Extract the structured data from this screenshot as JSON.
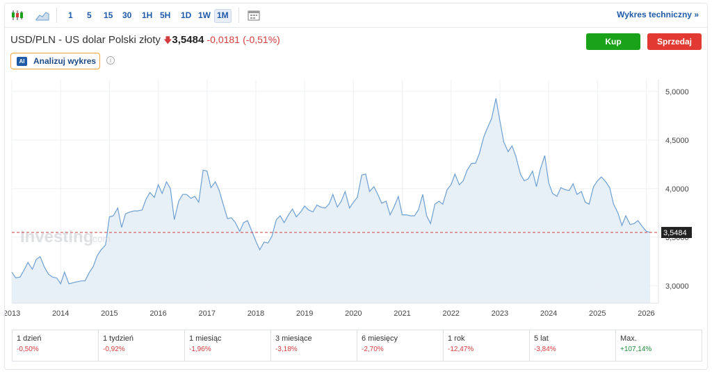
{
  "toolbar": {
    "timeframes": [
      "1",
      "5",
      "15",
      "30",
      "1H",
      "5H",
      "1D",
      "1W",
      "1M"
    ],
    "active_timeframe": "1M",
    "technical_link": "Wykres techniczny",
    "technical_arrow": "»"
  },
  "instrument": {
    "name": "USD/PLN - US dolar Polski złoty",
    "price": "3,5484",
    "change": "-0,0181",
    "change_pct": "(-0,51%)"
  },
  "actions": {
    "buy": "Kup",
    "sell": "Sprzedaj"
  },
  "ai": {
    "badge": "AI",
    "label": "Analizuj wykres",
    "info": "i"
  },
  "watermark": {
    "main": "Investing",
    "suffix": ".com"
  },
  "colors": {
    "line": "#6c9fd3",
    "fill": "#e4edf6",
    "last_line": "#d23c3c",
    "accent": "#1e5aa8",
    "buy": "#1aa21a",
    "sell": "#e23a32"
  },
  "chart_data": {
    "type": "area",
    "x_tick_labels": [
      "2013",
      "2014",
      "2015",
      "2016",
      "2017",
      "2018",
      "2019",
      "2020",
      "2021",
      "2022",
      "2023",
      "2024",
      "2025",
      "2026"
    ],
    "y_tick_labels": [
      "3,0000",
      "3,5000",
      "4,0000",
      "4,5000",
      "5,0000"
    ],
    "y_ticks": [
      3.0,
      3.5,
      4.0,
      4.5,
      5.0
    ],
    "ylim": [
      2.82,
      5.12
    ],
    "xlim": [
      2013.0,
      2026.25
    ],
    "last_value": 3.5484,
    "last_value_label": "3,5484",
    "grid": true,
    "series": [
      {
        "x": [
          2013.0,
          2013.08,
          2013.17,
          2013.25,
          2013.33,
          2013.42,
          2013.5,
          2013.58,
          2013.67,
          2013.75,
          2013.83,
          2013.92,
          2014.0,
          2014.08,
          2014.17,
          2014.25,
          2014.33,
          2014.42,
          2014.5,
          2014.58,
          2014.67,
          2014.75,
          2014.83,
          2014.92,
          2015.0,
          2015.08,
          2015.17,
          2015.25,
          2015.33,
          2015.42,
          2015.5,
          2015.58,
          2015.67,
          2015.75,
          2015.83,
          2015.92,
          2016.0,
          2016.08,
          2016.17,
          2016.25,
          2016.33,
          2016.42,
          2016.5,
          2016.58,
          2016.67,
          2016.75,
          2016.83,
          2016.92,
          2017.0,
          2017.08,
          2017.17,
          2017.25,
          2017.33,
          2017.42,
          2017.5,
          2017.58,
          2017.67,
          2017.75,
          2017.83,
          2017.92,
          2018.0,
          2018.08,
          2018.17,
          2018.25,
          2018.33,
          2018.42,
          2018.5,
          2018.58,
          2018.67,
          2018.75,
          2018.83,
          2018.92,
          2019.0,
          2019.08,
          2019.17,
          2019.25,
          2019.33,
          2019.42,
          2019.5,
          2019.58,
          2019.67,
          2019.75,
          2019.83,
          2019.92,
          2020.0,
          2020.08,
          2020.17,
          2020.25,
          2020.33,
          2020.42,
          2020.5,
          2020.58,
          2020.67,
          2020.75,
          2020.83,
          2020.92,
          2021.0,
          2021.08,
          2021.17,
          2021.25,
          2021.33,
          2021.42,
          2021.5,
          2021.58,
          2021.67,
          2021.75,
          2021.83,
          2021.92,
          2022.0,
          2022.08,
          2022.17,
          2022.25,
          2022.33,
          2022.42,
          2022.5,
          2022.58,
          2022.67,
          2022.75,
          2022.83,
          2022.92,
          2023.0,
          2023.08,
          2023.17,
          2023.25,
          2023.33,
          2023.42,
          2023.5,
          2023.58,
          2023.67,
          2023.75,
          2023.83,
          2023.92,
          2024.0,
          2024.08,
          2024.17,
          2024.25,
          2024.33,
          2024.42,
          2024.5,
          2024.58,
          2024.67,
          2024.75,
          2024.83,
          2024.92,
          2025.0,
          2025.08,
          2025.17,
          2025.25,
          2025.33,
          2025.42,
          2025.5,
          2025.58,
          2025.67,
          2025.75,
          2025.83,
          2025.92,
          2026.0,
          2026.08
        ],
        "y": [
          3.14,
          3.08,
          3.09,
          3.16,
          3.24,
          3.17,
          3.27,
          3.3,
          3.19,
          3.12,
          3.09,
          3.08,
          3.02,
          3.14,
          3.02,
          3.03,
          3.04,
          3.05,
          3.05,
          3.13,
          3.2,
          3.31,
          3.37,
          3.42,
          3.71,
          3.72,
          3.8,
          3.6,
          3.74,
          3.76,
          3.77,
          3.77,
          3.78,
          3.89,
          3.96,
          3.91,
          4.04,
          3.95,
          4.07,
          4.0,
          3.68,
          3.87,
          3.94,
          3.94,
          3.9,
          3.92,
          3.86,
          4.19,
          4.18,
          4.01,
          4.07,
          3.98,
          3.84,
          3.69,
          3.7,
          3.65,
          3.56,
          3.65,
          3.67,
          3.56,
          3.46,
          3.37,
          3.45,
          3.44,
          3.51,
          3.68,
          3.72,
          3.65,
          3.73,
          3.79,
          3.71,
          3.76,
          3.82,
          3.78,
          3.76,
          3.83,
          3.81,
          3.8,
          3.84,
          3.94,
          3.81,
          3.87,
          3.97,
          3.8,
          3.86,
          3.91,
          4.14,
          4.15,
          3.97,
          4.02,
          3.94,
          3.85,
          3.87,
          3.73,
          3.81,
          3.92,
          3.73,
          3.73,
          3.72,
          3.72,
          3.78,
          3.94,
          3.72,
          3.64,
          3.84,
          3.87,
          3.84,
          3.99,
          4.04,
          4.15,
          4.04,
          4.08,
          4.19,
          4.26,
          4.26,
          4.36,
          4.53,
          4.63,
          4.72,
          4.93,
          4.7,
          4.48,
          4.38,
          4.44,
          4.33,
          4.15,
          4.08,
          4.1,
          4.18,
          4.02,
          4.2,
          4.34,
          4.06,
          3.95,
          3.92,
          4.01,
          3.99,
          3.98,
          4.05,
          3.94,
          3.97,
          3.86,
          3.84,
          4.02,
          4.08,
          4.12,
          4.07,
          4.01,
          3.84,
          3.75,
          3.62,
          3.72,
          3.63,
          3.64,
          3.67,
          3.61,
          3.56,
          3.55
        ]
      }
    ]
  },
  "performance": [
    {
      "label": "1 dzień",
      "value": "-0,50%",
      "sign": "neg"
    },
    {
      "label": "1 tydzień",
      "value": "-0,92%",
      "sign": "neg"
    },
    {
      "label": "1 miesiąc",
      "value": "-1,96%",
      "sign": "neg"
    },
    {
      "label": "3 miesiące",
      "value": "-3,18%",
      "sign": "neg"
    },
    {
      "label": "6 miesięcy",
      "value": "-2,70%",
      "sign": "neg"
    },
    {
      "label": "1 rok",
      "value": "-12,47%",
      "sign": "neg"
    },
    {
      "label": "5 lat",
      "value": "-3,84%",
      "sign": "neg"
    },
    {
      "label": "Max.",
      "value": "+107,14%",
      "sign": "pos"
    }
  ]
}
